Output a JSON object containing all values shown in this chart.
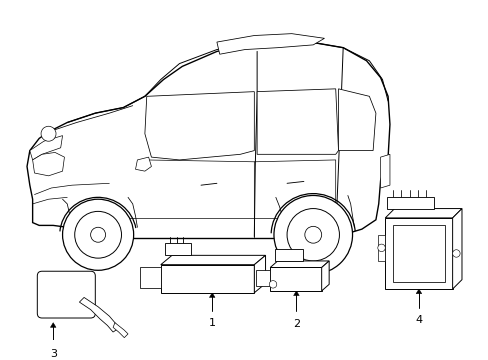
{
  "background_color": "#ffffff",
  "line_color": "#000000",
  "line_width": 0.7,
  "fig_width": 4.89,
  "fig_height": 3.6,
  "dpi": 100
}
